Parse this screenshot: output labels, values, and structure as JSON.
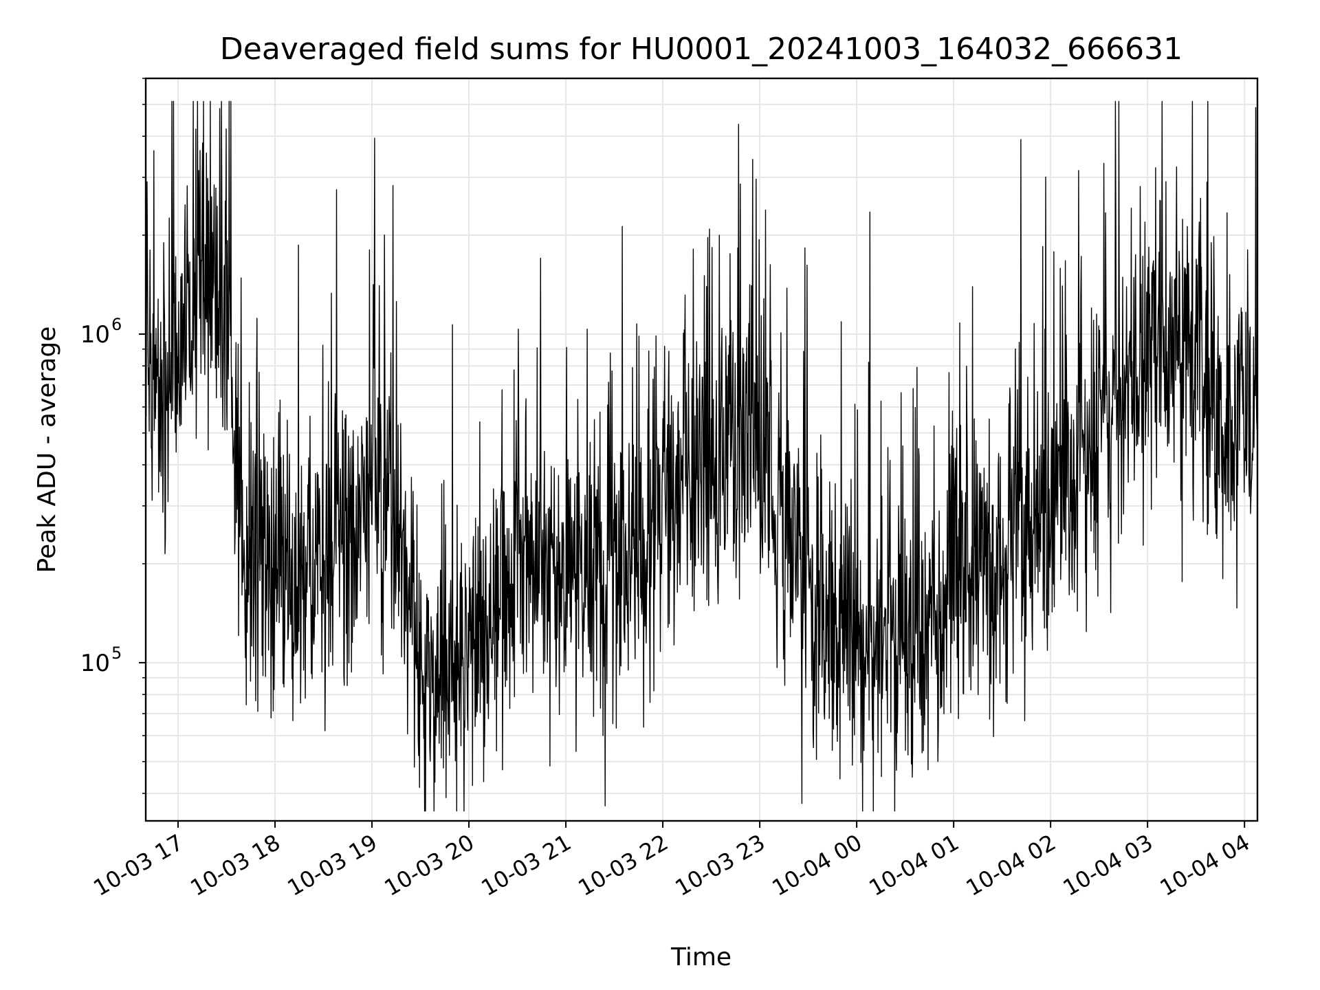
{
  "chart_data": {
    "type": "line",
    "title": "Deaveraged field sums for HU0001_20241003_164032_666631",
    "xlabel": "Time",
    "ylabel": "Peak ADU - average",
    "yscale": "log",
    "ylim": [
      33000,
      6000000
    ],
    "xlim": [
      "2024-10-03 16:40",
      "2024-10-04 04:08"
    ],
    "grid": true,
    "line_color": "#000000",
    "grid_color": "#e6e6e6",
    "x_ticks": [
      "10-03 17",
      "10-03 18",
      "10-03 19",
      "10-03 20",
      "10-03 21",
      "10-03 22",
      "10-03 23",
      "10-04 00",
      "10-04 01",
      "10-04 02",
      "10-04 03",
      "10-04 04"
    ],
    "y_ticks": [
      {
        "base": "10",
        "exp": "5",
        "value": 100000
      },
      {
        "base": "10",
        "exp": "6",
        "value": 1000000
      }
    ],
    "series": [
      {
        "x": [
          "2024-10-03 16:40",
          "2024-10-03 17:00",
          "2024-10-03 17:15",
          "2024-10-03 17:30",
          "2024-10-03 17:40",
          "2024-10-03 18:00",
          "2024-10-03 18:30",
          "2024-10-03 18:45",
          "2024-10-03 19:00",
          "2024-10-03 19:20",
          "2024-10-03 19:30",
          "2024-10-03 19:45",
          "2024-10-03 20:00",
          "2024-10-03 20:30",
          "2024-10-03 21:00",
          "2024-10-03 21:30",
          "2024-10-03 22:00",
          "2024-10-03 22:30",
          "2024-10-03 22:50",
          "2024-10-03 23:00",
          "2024-10-03 23:30",
          "2024-10-04 00:00",
          "2024-10-04 00:30",
          "2024-10-04 01:00",
          "2024-10-04 01:30",
          "2024-10-04 02:00",
          "2024-10-04 02:30",
          "2024-10-04 03:00",
          "2024-10-04 03:30",
          "2024-10-04 03:45",
          "2024-10-04 04:08"
        ],
        "y": [
          700000,
          800000,
          1500000,
          1300000,
          220000,
          160000,
          200000,
          220000,
          350000,
          220000,
          80000,
          90000,
          100000,
          220000,
          200000,
          180000,
          280000,
          450000,
          500000,
          400000,
          180000,
          100000,
          110000,
          180000,
          200000,
          300000,
          500000,
          900000,
          1000000,
          450000,
          700000
        ]
      }
    ]
  }
}
